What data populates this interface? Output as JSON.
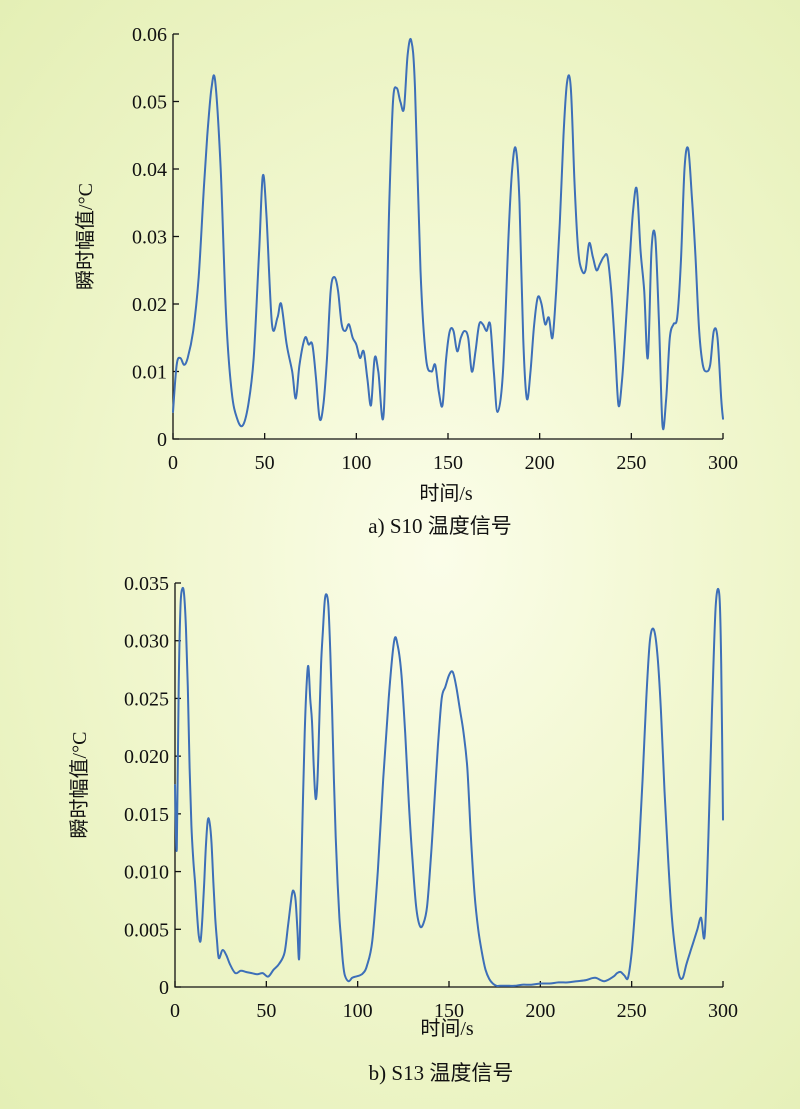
{
  "chart_data": [
    {
      "type": "line",
      "caption": "a) S10 温度信号",
      "xlabel": "时间/s",
      "ylabel": "瞬时幅值/°C",
      "xlim": [
        0,
        300
      ],
      "ylim": [
        0,
        0.06
      ],
      "xticks": [
        "0",
        "50",
        "100",
        "150",
        "200",
        "250",
        "300"
      ],
      "yticks": [
        "0",
        "0.01",
        "0.02",
        "0.03",
        "0.04",
        "0.05",
        "0.06"
      ],
      "series": [
        {
          "x": [
            0,
            2,
            4,
            6,
            8,
            11,
            14,
            17,
            19,
            21,
            23,
            26,
            29,
            32,
            35,
            38,
            41,
            44,
            47,
            49,
            51,
            54,
            57,
            59,
            62,
            65,
            67,
            69,
            72,
            74,
            76,
            78,
            80,
            82,
            84,
            86,
            88,
            90,
            92,
            94,
            96,
            98,
            100,
            102,
            104,
            106,
            108,
            110,
            112,
            115,
            118,
            120,
            122,
            124,
            126,
            128,
            130,
            132,
            135,
            138,
            141,
            143,
            145,
            147,
            149,
            151,
            153,
            155,
            157,
            159,
            161,
            163,
            165,
            167,
            169,
            171,
            173,
            175,
            177,
            180,
            183,
            185,
            187,
            189,
            191,
            193,
            195,
            197,
            199,
            201,
            203,
            205,
            207,
            209,
            211,
            213,
            215,
            217,
            219,
            221,
            223,
            225,
            227,
            229,
            231,
            233,
            235,
            237,
            239,
            241,
            243,
            245,
            247,
            249,
            251,
            253,
            255,
            257,
            259,
            261,
            263,
            265,
            267,
            269,
            271,
            273,
            275,
            277,
            279,
            281,
            283,
            285,
            287,
            289,
            291,
            293,
            295,
            297,
            299,
            300
          ],
          "y": [
            0.004,
            0.011,
            0.012,
            0.011,
            0.012,
            0.016,
            0.024,
            0.038,
            0.046,
            0.052,
            0.053,
            0.04,
            0.018,
            0.007,
            0.003,
            0.002,
            0.005,
            0.012,
            0.028,
            0.039,
            0.033,
            0.017,
            0.018,
            0.02,
            0.014,
            0.01,
            0.006,
            0.011,
            0.015,
            0.014,
            0.014,
            0.009,
            0.003,
            0.005,
            0.012,
            0.022,
            0.024,
            0.022,
            0.017,
            0.016,
            0.017,
            0.015,
            0.014,
            0.012,
            0.013,
            0.009,
            0.005,
            0.012,
            0.01,
            0.004,
            0.035,
            0.05,
            0.052,
            0.05,
            0.049,
            0.057,
            0.059,
            0.052,
            0.025,
            0.012,
            0.01,
            0.011,
            0.007,
            0.005,
            0.012,
            0.016,
            0.016,
            0.013,
            0.015,
            0.016,
            0.015,
            0.01,
            0.013,
            0.017,
            0.017,
            0.016,
            0.017,
            0.01,
            0.004,
            0.01,
            0.03,
            0.04,
            0.043,
            0.035,
            0.015,
            0.006,
            0.01,
            0.017,
            0.021,
            0.02,
            0.017,
            0.018,
            0.015,
            0.022,
            0.032,
            0.045,
            0.053,
            0.052,
            0.038,
            0.028,
            0.025,
            0.025,
            0.029,
            0.027,
            0.025,
            0.026,
            0.027,
            0.027,
            0.022,
            0.014,
            0.005,
            0.009,
            0.017,
            0.026,
            0.034,
            0.037,
            0.028,
            0.022,
            0.012,
            0.028,
            0.03,
            0.018,
            0.002,
            0.006,
            0.015,
            0.017,
            0.018,
            0.026,
            0.04,
            0.043,
            0.036,
            0.027,
            0.016,
            0.011,
            0.01,
            0.011,
            0.016,
            0.015,
            0.006,
            0.003
          ]
        }
      ]
    },
    {
      "type": "line",
      "caption": "b) S13 温度信号",
      "xlabel": "时间/s",
      "ylabel": "瞬时幅值/°C",
      "xlim": [
        0,
        300
      ],
      "ylim": [
        0,
        0.035
      ],
      "xticks": [
        "0",
        "50",
        "100",
        "150",
        "200",
        "250",
        "300"
      ],
      "yticks": [
        "0",
        "0.005",
        "0.010",
        "0.015",
        "0.020",
        "0.025",
        "0.030",
        "0.035"
      ],
      "series": [
        {
          "x": [
            0,
            1,
            2,
            3,
            4,
            5,
            6,
            7,
            8,
            9,
            10,
            11,
            12,
            13,
            14,
            15,
            16,
            17,
            18,
            19,
            20,
            21,
            22,
            23,
            24,
            26,
            28,
            30,
            33,
            36,
            39,
            42,
            45,
            48,
            51,
            54,
            57,
            60,
            62,
            64,
            65,
            66,
            67,
            68,
            69,
            70,
            71,
            72,
            73,
            74,
            75,
            76,
            77,
            78,
            79,
            80,
            81,
            82,
            83,
            84,
            85,
            86,
            87,
            88,
            89,
            90,
            91,
            92,
            93,
            95,
            97,
            99,
            101,
            103,
            105,
            108,
            111,
            114,
            117,
            120,
            122,
            124,
            126,
            128,
            130,
            132,
            134,
            136,
            138,
            140,
            142,
            144,
            146,
            148,
            150,
            152,
            154,
            156,
            158,
            160,
            162,
            164,
            166,
            168,
            170,
            172,
            174,
            176,
            178,
            180,
            183,
            186,
            190,
            195,
            200,
            205,
            210,
            215,
            220,
            225,
            230,
            235,
            240,
            242,
            244,
            246,
            248,
            250,
            252,
            254,
            256,
            258,
            260,
            262,
            264,
            266,
            268,
            270,
            272,
            274,
            276,
            278,
            280,
            282,
            284,
            286,
            288,
            290,
            292,
            294,
            296,
            298,
            299,
            300
          ],
          "y": [
            0.0175,
            0.012,
            0.026,
            0.033,
            0.0345,
            0.034,
            0.031,
            0.026,
            0.019,
            0.014,
            0.011,
            0.009,
            0.0065,
            0.0045,
            0.004,
            0.006,
            0.009,
            0.0125,
            0.0145,
            0.0142,
            0.0125,
            0.009,
            0.006,
            0.004,
            0.0025,
            0.0032,
            0.0028,
            0.002,
            0.0012,
            0.0014,
            0.0013,
            0.0012,
            0.0011,
            0.0012,
            0.0009,
            0.0015,
            0.002,
            0.003,
            0.0055,
            0.008,
            0.0083,
            0.0075,
            0.005,
            0.0025,
            0.009,
            0.016,
            0.022,
            0.026,
            0.0278,
            0.025,
            0.023,
            0.019,
            0.0163,
            0.018,
            0.023,
            0.028,
            0.031,
            0.0335,
            0.034,
            0.033,
            0.029,
            0.024,
            0.018,
            0.013,
            0.009,
            0.006,
            0.004,
            0.002,
            0.001,
            0.0005,
            0.0008,
            0.0009,
            0.001,
            0.0012,
            0.0018,
            0.004,
            0.01,
            0.018,
            0.025,
            0.03,
            0.0295,
            0.027,
            0.022,
            0.016,
            0.011,
            0.007,
            0.0053,
            0.0055,
            0.007,
            0.011,
            0.016,
            0.021,
            0.025,
            0.026,
            0.027,
            0.0273,
            0.026,
            0.024,
            0.022,
            0.019,
            0.013,
            0.008,
            0.005,
            0.003,
            0.0015,
            0.0007,
            0.0003,
            0.0001,
            0.0001,
            0.0001,
            0.0001,
            0.0001,
            0.0002,
            0.0002,
            0.0003,
            0.0003,
            0.0004,
            0.0004,
            0.0005,
            0.0006,
            0.0008,
            0.0005,
            0.0009,
            0.0012,
            0.0013,
            0.001,
            0.0008,
            0.003,
            0.007,
            0.012,
            0.018,
            0.025,
            0.03,
            0.031,
            0.029,
            0.024,
            0.017,
            0.011,
            0.006,
            0.003,
            0.001,
            0.0008,
            0.002,
            0.003,
            0.004,
            0.005,
            0.006,
            0.0045,
            0.013,
            0.024,
            0.033,
            0.034,
            0.028,
            0.0145
          ]
        }
      ]
    }
  ]
}
